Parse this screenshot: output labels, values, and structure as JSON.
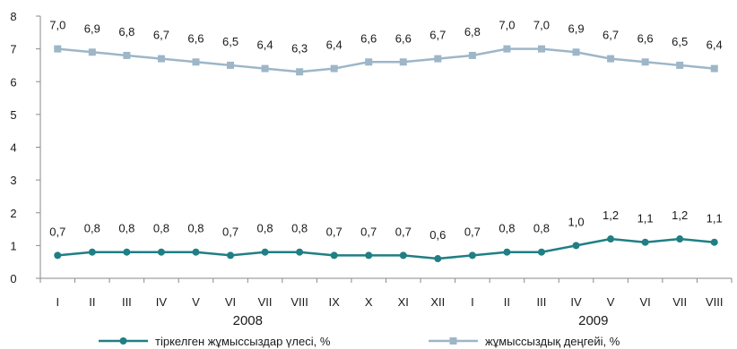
{
  "chart_data": {
    "type": "line",
    "categories": [
      "I",
      "II",
      "III",
      "IV",
      "V",
      "VI",
      "VII",
      "VIII",
      "IX",
      "X",
      "XI",
      "XII",
      "I",
      "II",
      "III",
      "IV",
      "V",
      "VI",
      "VII",
      "VIII"
    ],
    "year_groups": [
      {
        "label": "2008",
        "start": 0,
        "end": 11
      },
      {
        "label": "2009",
        "start": 12,
        "end": 19
      }
    ],
    "ylim": [
      0,
      8
    ],
    "yticks": [
      0,
      1,
      2,
      3,
      4,
      5,
      6,
      7,
      8
    ],
    "grid": false,
    "legend_position": "bottom",
    "series": [
      {
        "name": "тіркелген жұмыссыздар үлесі, %",
        "color": "#1f7f84",
        "marker": "circle",
        "values": [
          0.7,
          0.8,
          0.8,
          0.8,
          0.8,
          0.7,
          0.8,
          0.8,
          0.7,
          0.7,
          0.7,
          0.6,
          0.7,
          0.8,
          0.8,
          1.0,
          1.2,
          1.1,
          1.2,
          1.1
        ],
        "labels": [
          "0,7",
          "0,8",
          "0,8",
          "0,8",
          "0,8",
          "0,7",
          "0,8",
          "0,8",
          "0,7",
          "0,7",
          "0,7",
          "0,6",
          "0,7",
          "0,8",
          "0,8",
          "1,0",
          "1,2",
          "1,1",
          "1,2",
          "1,1"
        ]
      },
      {
        "name": "жұмыссыздық деңгейі, %",
        "color": "#9db6c8",
        "marker": "square",
        "values": [
          7.0,
          6.9,
          6.8,
          6.7,
          6.6,
          6.5,
          6.4,
          6.3,
          6.4,
          6.6,
          6.6,
          6.7,
          6.8,
          7.0,
          7.0,
          6.9,
          6.7,
          6.6,
          6.5,
          6.4
        ],
        "labels": [
          "7,0",
          "6,9",
          "6,8",
          "6,7",
          "6,6",
          "6,5",
          "6,4",
          "6,3",
          "6,4",
          "6,6",
          "6,6",
          "6,7",
          "6,8",
          "7,0",
          "7,0",
          "6,9",
          "6,7",
          "6,6",
          "6,5",
          "6,4"
        ]
      }
    ]
  }
}
